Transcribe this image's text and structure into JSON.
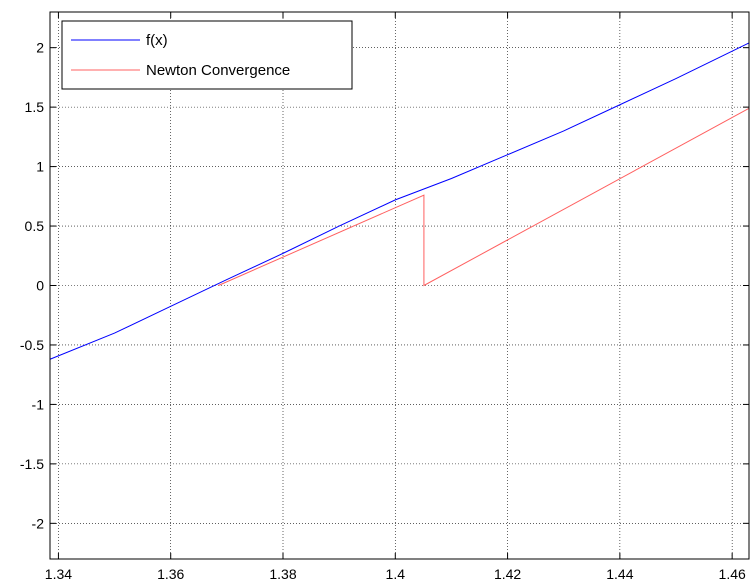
{
  "chart_data": {
    "type": "line",
    "title": "",
    "xlabel": "",
    "ylabel": "",
    "xlim": [
      1.3385,
      1.463
    ],
    "ylim": [
      -2.3,
      2.3
    ],
    "grid": true,
    "legend": {
      "placement": "top-left",
      "entries": [
        "f(x)",
        "Newton Convergence"
      ]
    },
    "xticks": [
      1.34,
      1.36,
      1.38,
      1.4,
      1.42,
      1.44,
      1.46
    ],
    "xtick_labels": [
      "1.34",
      "1.36",
      "1.38",
      "1.4",
      "1.42",
      "1.44",
      "1.46"
    ],
    "yticks": [
      -2,
      -1.5,
      -1,
      -0.5,
      0,
      0.5,
      1,
      1.5,
      2
    ],
    "ytick_labels": [
      "-2",
      "-1.5",
      "-1",
      "-0.5",
      "0",
      "0.5",
      "1",
      "1.5",
      "2"
    ],
    "series": [
      {
        "name": "f(x)",
        "color": "#0000ff",
        "x": [
          1.3385,
          1.35,
          1.36,
          1.37,
          1.38,
          1.39,
          1.4,
          1.41,
          1.42,
          1.43,
          1.44,
          1.45,
          1.463
        ],
        "y": [
          -0.62,
          -0.4,
          -0.175,
          0.05,
          0.27,
          0.5,
          0.72,
          0.9,
          1.1,
          1.3,
          1.52,
          1.74,
          2.04
        ]
      },
      {
        "name": "Newton Convergence",
        "color": "#ff6060",
        "x": [
          1.463,
          1.4051,
          1.4051,
          1.3685,
          1.3685
        ],
        "y": [
          1.49,
          0.0,
          0.76,
          0.0,
          0.0
        ]
      }
    ]
  }
}
